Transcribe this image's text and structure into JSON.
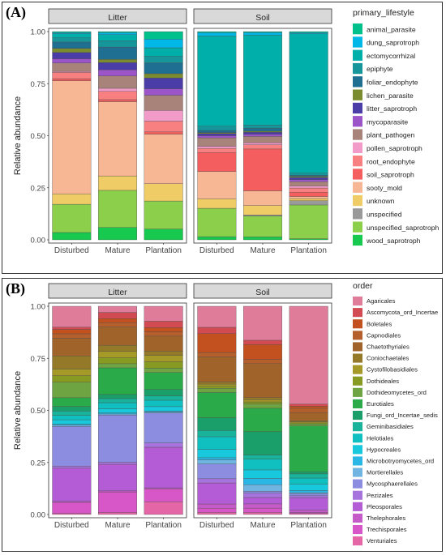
{
  "chart_data": [
    {
      "type": "bar",
      "panel_label": "(A)",
      "facets": [
        "Litter",
        "Soil"
      ],
      "categories": [
        "Disturbed",
        "Mature",
        "Plantation"
      ],
      "ylabel": "Relative abundance",
      "yticks": [
        "0.00",
        "0.25",
        "0.50",
        "0.75",
        "1.00"
      ],
      "ylim": [
        0,
        1
      ],
      "stacked": true,
      "legend_title": "primary_lifestyle",
      "legend_position": "right",
      "series": [
        {
          "name": "animal_parasite",
          "color": "#00C08B",
          "values": {
            "Litter": [
              0.005,
              0.005,
              0.035
            ],
            "Soil": [
              0.005,
              0.004,
              0.005
            ]
          }
        },
        {
          "name": "dung_saprotroph",
          "color": "#00B8E7",
          "values": {
            "Litter": [
              0.005,
              0.01,
              0.04
            ],
            "Soil": [
              0.015,
              0.012,
              0.005
            ]
          }
        },
        {
          "name": "ectomycorrhizal",
          "color": "#00AFAA",
          "values": {
            "Litter": [
              0.02,
              0.03,
              0.04
            ],
            "Soil": [
              0.43,
              0.43,
              0.66
            ]
          }
        },
        {
          "name": "epiphyte",
          "color": "#16969A",
          "values": {
            "Litter": [
              0.02,
              0.03,
              0.03
            ],
            "Soil": [
              0.02,
              0.015,
              0.01
            ]
          }
        },
        {
          "name": "foliar_endophyte",
          "color": "#1F6F92",
          "values": {
            "Litter": [
              0.03,
              0.06,
              0.05
            ],
            "Soil": [
              0.01,
              0.015,
              0.005
            ]
          }
        },
        {
          "name": "lichen_parasite",
          "color": "#7A8C2E",
          "values": {
            "Litter": [
              0.02,
              0.015,
              0.02
            ],
            "Soil": [
              0.005,
              0.005,
              0.005
            ]
          }
        },
        {
          "name": "litter_saprotroph",
          "color": "#4B3DA8",
          "values": {
            "Litter": [
              0.03,
              0.035,
              0.05
            ],
            "Soil": [
              0.01,
              0.01,
              0.01
            ]
          }
        },
        {
          "name": "mycoparasite",
          "color": "#9C55C9",
          "values": {
            "Litter": [
              0.02,
              0.03,
              0.03
            ],
            "Soil": [
              0.01,
              0.01,
              0.01
            ]
          }
        },
        {
          "name": "plant_pathogen",
          "color": "#A8837A",
          "values": {
            "Litter": [
              0.04,
              0.06,
              0.07
            ],
            "Soil": [
              0.04,
              0.03,
              0.02
            ]
          }
        },
        {
          "name": "pollen_saprotroph",
          "color": "#F29BC8",
          "values": {
            "Litter": [
              0.005,
              0.015,
              0.05
            ],
            "Soil": [
              0.01,
              0.01,
              0.01
            ]
          }
        },
        {
          "name": "root_endophyte",
          "color": "#F88080",
          "values": {
            "Litter": [
              0.03,
              0.04,
              0.05
            ],
            "Soil": [
              0.02,
              0.02,
              0.02
            ]
          }
        },
        {
          "name": "soil_saprotroph",
          "color": "#F45E5E",
          "values": {
            "Litter": [
              0.01,
              0.01,
              0.01
            ],
            "Soil": [
              0.09,
              0.2,
              0.02
            ]
          }
        },
        {
          "name": "sooty_mold",
          "color": "#F8B794",
          "values": {
            "Litter": [
              0.54,
              0.36,
              0.23
            ],
            "Soil": [
              0.13,
              0.07,
              0.01
            ]
          }
        },
        {
          "name": "unknown",
          "color": "#F0CC66",
          "values": {
            "Litter": [
              0.05,
              0.07,
              0.08
            ],
            "Soil": [
              0.045,
              0.045,
              0.01
            ]
          }
        },
        {
          "name": "unspecified",
          "color": "#999999",
          "values": {
            "Litter": [
              0.0,
              0.0,
              0.0
            ],
            "Soil": [
              0.0,
              0.005,
              0.02
            ]
          }
        },
        {
          "name": "unspecified_saprotroph",
          "color": "#8BCF4A",
          "values": {
            "Litter": [
              0.135,
              0.18,
              0.13
            ],
            "Soil": [
              0.135,
              0.1,
              0.16
            ]
          }
        },
        {
          "name": "wood_saprotroph",
          "color": "#17C94E",
          "values": {
            "Litter": [
              0.035,
              0.06,
              0.05
            ],
            "Soil": [
              0.015,
              0.014,
              0.005
            ]
          }
        }
      ]
    },
    {
      "type": "bar",
      "panel_label": "(B)",
      "facets": [
        "Litter",
        "Soil"
      ],
      "categories": [
        "Disturbed",
        "Mature",
        "Plantation"
      ],
      "ylabel": "Relative abundance",
      "yticks": [
        "0.00",
        "0.25",
        "0.50",
        "0.75",
        "1.00"
      ],
      "ylim": [
        0,
        1
      ],
      "stacked": true,
      "legend_title": "order",
      "legend_position": "right",
      "series": [
        {
          "name": "Agaricales",
          "color": "#DF7C9A",
          "values": {
            "Litter": [
              0.095,
              0.03,
              0.07
            ],
            "Soil": [
              0.1,
              0.16,
              0.47
            ]
          }
        },
        {
          "name": "Ascomycota_ord_Incertae",
          "color": "#D24B53",
          "values": {
            "Litter": [
              0.01,
              0.03,
              0.03
            ],
            "Soil": [
              0.03,
              0.02,
              0.01
            ]
          }
        },
        {
          "name": "Boletales",
          "color": "#C2511F",
          "values": {
            "Litter": [
              0.02,
              0.02,
              0.02
            ],
            "Soil": [
              0.09,
              0.07,
              0.01
            ]
          }
        },
        {
          "name": "Capnodiales",
          "color": "#B5602C",
          "values": {
            "Litter": [
              0.02,
              0.02,
              0.02
            ],
            "Soil": [
              0.02,
              0.02,
              0.02
            ]
          }
        },
        {
          "name": "Chaetothyriales",
          "color": "#A0642B",
          "values": {
            "Litter": [
              0.08,
              0.09,
              0.07
            ],
            "Soil": [
              0.12,
              0.16,
              0.04
            ]
          }
        },
        {
          "name": "Coniochaetales",
          "color": "#947A28",
          "values": {
            "Litter": [
              0.06,
              0.03,
              0.02
            ],
            "Soil": [
              0.01,
              0.01,
              0.005
            ]
          }
        },
        {
          "name": "Cystofilobasidiales",
          "color": "#A59A28",
          "values": {
            "Litter": [
              0.03,
              0.03,
              0.03
            ],
            "Soil": [
              0.01,
              0.01,
              0.005
            ]
          }
        },
        {
          "name": "Dothideales",
          "color": "#879A22",
          "values": {
            "Litter": [
              0.03,
              0.03,
              0.03
            ],
            "Soil": [
              0.01,
              0.01,
              0.005
            ]
          }
        },
        {
          "name": "Dothideomycetes_ord",
          "color": "#6EA542",
          "values": {
            "Litter": [
              0.07,
              0.02,
              0.02
            ],
            "Soil": [
              0.02,
              0.02,
              0.01
            ]
          }
        },
        {
          "name": "Eurotiales",
          "color": "#2BAA4A",
          "values": {
            "Litter": [
              0.04,
              0.13,
              0.08
            ],
            "Soil": [
              0.12,
              0.11,
              0.22
            ]
          }
        },
        {
          "name": "Fungi_ord_Incertae_sedis",
          "color": "#1A9E6A",
          "values": {
            "Litter": [
              0.02,
              0.02,
              0.03
            ],
            "Soil": [
              0.06,
              0.11,
              0.01
            ]
          }
        },
        {
          "name": "Geminibasidiales",
          "color": "#19B39B",
          "values": {
            "Litter": [
              0.02,
              0.02,
              0.02
            ],
            "Soil": [
              0.03,
              0.02,
              0.02
            ]
          }
        },
        {
          "name": "Helotiales",
          "color": "#10BFBF",
          "values": {
            "Litter": [
              0.02,
              0.03,
              0.03
            ],
            "Soil": [
              0.06,
              0.05,
              0.03
            ]
          }
        },
        {
          "name": "Hypocreales",
          "color": "#18C8DD",
          "values": {
            "Litter": [
              0.02,
              0.02,
              0.02
            ],
            "Soil": [
              0.04,
              0.04,
              0.03
            ]
          }
        },
        {
          "name": "Microbotryomycetes_ord",
          "color": "#2BB7E5",
          "values": {
            "Litter": [
              0.005,
              0.005,
              0.005
            ],
            "Soil": [
              0.01,
              0.03,
              0.01
            ]
          }
        },
        {
          "name": "Mortierellales",
          "color": "#70B5E2",
          "values": {
            "Litter": [
              0.005,
              0.005,
              0.005
            ],
            "Soil": [
              0.02,
              0.03,
              0.005
            ]
          }
        },
        {
          "name": "Mycosphaerellales",
          "color": "#8C8CE0",
          "values": {
            "Litter": [
              0.18,
              0.23,
              0.14
            ],
            "Soil": [
              0.07,
              0.01,
              0.01
            ]
          }
        },
        {
          "name": "Pezizales",
          "color": "#A774DD",
          "values": {
            "Litter": [
              0.01,
              0.01,
              0.02
            ],
            "Soil": [
              0.02,
              0.02,
              0.01
            ]
          }
        },
        {
          "name": "Pleosporales",
          "color": "#B45CD5",
          "values": {
            "Litter": [
              0.15,
              0.13,
              0.19
            ],
            "Soil": [
              0.1,
              0.03,
              0.06
            ]
          }
        },
        {
          "name": "Thelephorales",
          "color": "#C45BC8",
          "values": {
            "Litter": [
              0.005,
              0.005,
              0.005
            ],
            "Soil": [
              0.02,
              0.02,
              0.01
            ]
          }
        },
        {
          "name": "Trechisporales",
          "color": "#D857C8",
          "values": {
            "Litter": [
              0.05,
              0.1,
              0.06
            ],
            "Soil": [
              0.02,
              0.02,
              0.005
            ]
          }
        },
        {
          "name": "Venturiales",
          "color": "#E466A6",
          "values": {
            "Litter": [
              0.005,
              0.01,
              0.06
            ],
            "Soil": [
              0.01,
              0.01,
              0.005
            ]
          }
        }
      ]
    }
  ]
}
